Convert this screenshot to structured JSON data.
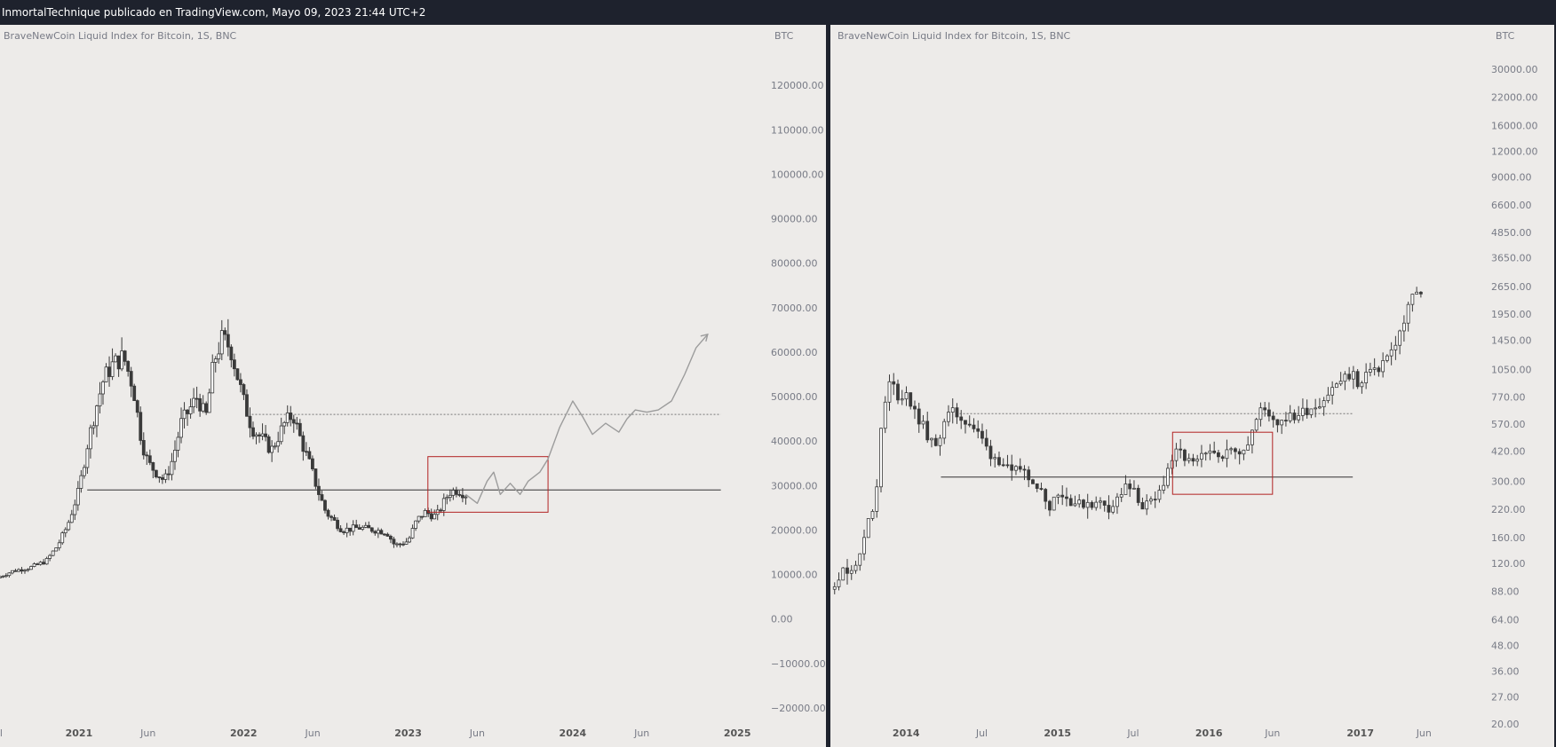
{
  "header": {
    "attribution": "InmortalTechnique publicado en TradingView.com, Mayo 09, 2023 21:44 UTC+2"
  },
  "colors": {
    "background": "#edebe9",
    "candle": "#3a3a3a",
    "box": "#b22222",
    "projection": "#9c9c9c",
    "axis_text": "#787b86",
    "frame": "#1e222d"
  },
  "chart_data": [
    {
      "type": "candlestick",
      "legend": "BraveNewCoin Liquid Index for Bitcoin, 1S, BNC",
      "currency": "BTC",
      "y_scale": "linear",
      "ylim": [
        -28000,
        132000
      ],
      "y_ticks": [
        120000,
        110000,
        100000,
        90000,
        80000,
        70000,
        60000,
        50000,
        40000,
        30000,
        20000,
        10000,
        0,
        -10000,
        -20000
      ],
      "y_tick_labels": [
        "120000.00",
        "110000.00",
        "100000.00",
        "90000.00",
        "80000.00",
        "70000.00",
        "60000.00",
        "50000.00",
        "40000.00",
        "30000.00",
        "20000.00",
        "10000.00",
        "0.00",
        "−10000.00",
        "−20000.00"
      ],
      "x_ticks": [
        {
          "label": "Jul",
          "t": 2020.5
        },
        {
          "label": "2021",
          "t": 2021.0
        },
        {
          "label": "Jun",
          "t": 2021.42
        },
        {
          "label": "2022",
          "t": 2022.0
        },
        {
          "label": "Jun",
          "t": 2022.42
        },
        {
          "label": "2023",
          "t": 2023.0
        },
        {
          "label": "Jun",
          "t": 2023.42
        },
        {
          "label": "2024",
          "t": 2024.0
        },
        {
          "label": "Jun",
          "t": 2024.42
        },
        {
          "label": "2025",
          "t": 2025.0
        }
      ],
      "xlim": [
        2020.52,
        2025.08
      ],
      "series": [
        {
          "x": [
            2020.5,
            2020.6,
            2020.7,
            2020.8,
            2020.87,
            2020.93,
            2021.0,
            2021.05,
            2021.1,
            2021.15,
            2021.2,
            2021.27,
            2021.33,
            2021.38,
            2021.42,
            2021.47,
            2021.52,
            2021.57,
            2021.62,
            2021.67,
            2021.72,
            2021.77,
            2021.82,
            2021.87,
            2021.92,
            2021.96,
            2022.0,
            2022.05,
            2022.1,
            2022.17,
            2022.25,
            2022.3,
            2022.35,
            2022.4,
            2022.45,
            2022.5,
            2022.6,
            2022.7,
            2022.8,
            2022.87,
            2022.92,
            2023.0,
            2023.05,
            2023.1,
            2023.17,
            2023.25,
            2023.3,
            2023.35
          ],
          "values": [
            9200,
            10800,
            11500,
            13000,
            16500,
            21000,
            29000,
            39000,
            47000,
            54000,
            57000,
            59000,
            52000,
            40000,
            35000,
            33000,
            31000,
            36000,
            44000,
            47000,
            50000,
            45000,
            58000,
            63000,
            61000,
            55000,
            49000,
            43000,
            41000,
            38000,
            44000,
            46000,
            40000,
            35000,
            29000,
            24000,
            20000,
            20500,
            20000,
            19500,
            16500,
            17500,
            22000,
            24000,
            23000,
            28500,
            29000,
            28000
          ]
        }
      ],
      "support_level": 29000,
      "resistance_level": 46000,
      "box": {
        "t0": 2023.12,
        "t1": 2023.85,
        "y0": 24000,
        "y1": 36500
      },
      "projection": {
        "x": [
          2023.35,
          2023.42,
          2023.48,
          2023.52,
          2023.56,
          2023.62,
          2023.68,
          2023.73,
          2023.8,
          2023.85,
          2023.92,
          2024.0,
          2024.06,
          2024.12,
          2024.2,
          2024.28,
          2024.33,
          2024.38,
          2024.45,
          2024.52,
          2024.6,
          2024.68,
          2024.75,
          2024.82
        ],
        "values": [
          28000,
          26000,
          31000,
          33000,
          28000,
          30500,
          28000,
          31000,
          33000,
          36000,
          43000,
          49000,
          45500,
          41500,
          44000,
          42000,
          45000,
          47000,
          46500,
          47000,
          49000,
          55000,
          61000,
          64000
        ]
      }
    },
    {
      "type": "candlestick",
      "legend": "BraveNewCoin Liquid Index for Bitcoin, 1S, BNC",
      "currency": "BTC",
      "y_scale": "log",
      "ylim": [
        20,
        42000
      ],
      "y_ticks": [
        30000,
        22000,
        16000,
        12000,
        9000,
        6600,
        4850,
        3650,
        2650,
        1950,
        1450,
        1050,
        770,
        570,
        420,
        300,
        220,
        160,
        120,
        88,
        64,
        48,
        36,
        27,
        20
      ],
      "y_tick_labels": [
        "30000.00",
        "22000.00",
        "16000.00",
        "12000.00",
        "9000.00",
        "6600.00",
        "4850.00",
        "3650.00",
        "2650.00",
        "1950.00",
        "1450.00",
        "1050.00",
        "770.00",
        "570.00",
        "420.00",
        "300.00",
        "220.00",
        "160.00",
        "120.00",
        "88.00",
        "64.00",
        "48.00",
        "36.00",
        "27.00",
        "20.00"
      ],
      "x_ticks": [
        {
          "label": "2014",
          "t": 2014.0
        },
        {
          "label": "Jul",
          "t": 2014.5
        },
        {
          "label": "2015",
          "t": 2015.0
        },
        {
          "label": "Jul",
          "t": 2015.5
        },
        {
          "label": "2016",
          "t": 2016.0
        },
        {
          "label": "Jun",
          "t": 2016.42
        },
        {
          "label": "2017",
          "t": 2017.0
        },
        {
          "label": "Jun",
          "t": 2017.42
        }
      ],
      "xlim": [
        2013.5,
        2017.43
      ],
      "series": [
        {
          "x": [
            2013.5,
            2013.55,
            2013.6,
            2013.65,
            2013.7,
            2013.75,
            2013.8,
            2013.85,
            2013.9,
            2013.93,
            2013.96,
            2014.0,
            2014.05,
            2014.1,
            2014.15,
            2014.2,
            2014.25,
            2014.3,
            2014.35,
            2014.4,
            2014.45,
            2014.5,
            2014.55,
            2014.6,
            2014.65,
            2014.7,
            2014.75,
            2014.8,
            2014.85,
            2014.9,
            2014.95,
            2015.0,
            2015.05,
            2015.1,
            2015.15,
            2015.2,
            2015.25,
            2015.3,
            2015.35,
            2015.4,
            2015.45,
            2015.5,
            2015.55,
            2015.6,
            2015.65,
            2015.7,
            2015.75,
            2015.8,
            2015.85,
            2015.9,
            2015.95,
            2016.0,
            2016.05,
            2016.1,
            2016.15,
            2016.2,
            2016.25,
            2016.3,
            2016.35,
            2016.4,
            2016.45,
            2016.5,
            2016.55,
            2016.6,
            2016.65,
            2016.7,
            2016.75,
            2016.8,
            2016.85,
            2016.9,
            2016.95,
            2017.0,
            2017.05,
            2017.1,
            2017.15,
            2017.2,
            2017.25,
            2017.3,
            2017.35,
            2017.4
          ],
          "values": [
            90,
            105,
            110,
            118,
            130,
            200,
            240,
            650,
            950,
            800,
            760,
            820,
            650,
            580,
            480,
            430,
            600,
            650,
            620,
            590,
            540,
            480,
            410,
            390,
            360,
            320,
            350,
            330,
            300,
            260,
            230,
            270,
            250,
            240,
            230,
            240,
            230,
            240,
            220,
            250,
            280,
            270,
            230,
            230,
            240,
            300,
            380,
            420,
            380,
            360,
            390,
            400,
            420,
            410,
            420,
            430,
            450,
            560,
            680,
            640,
            580,
            620,
            610,
            640,
            670,
            700,
            740,
            820,
            900,
            950,
            1000,
            850,
            1050,
            1000,
            1150,
            1250,
            1500,
            1850,
            2500,
            2350
          ]
        }
      ],
      "support_level": 315,
      "resistance_level": 640,
      "box": {
        "t0": 2015.76,
        "t1": 2016.42,
        "y0": 260,
        "y1": 520
      },
      "support_range": [
        2014.23,
        2016.95
      ],
      "resistance_range": [
        2014.33,
        2016.95
      ]
    }
  ]
}
